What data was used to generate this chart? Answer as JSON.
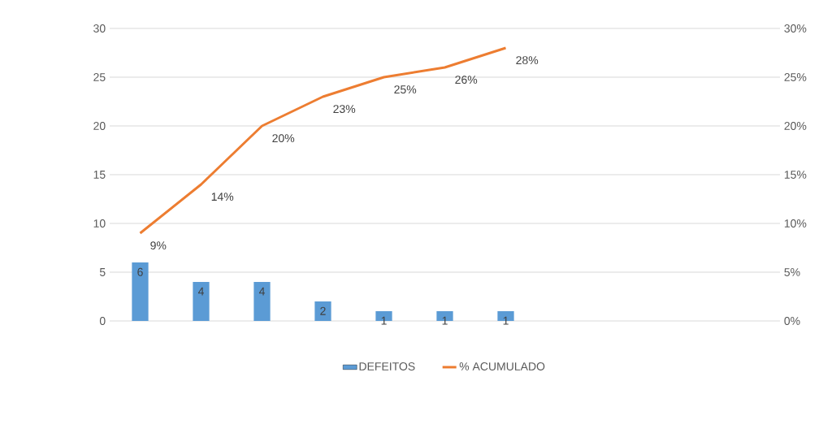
{
  "chart_data": {
    "type": "bar",
    "categories": [
      null,
      null,
      null,
      null,
      null,
      null,
      null,
      null,
      null,
      null,
      null
    ],
    "series": [
      {
        "name": "DEFEITOS",
        "color": "#5b9bd5",
        "values": [
          6,
          4,
          4,
          2,
          1,
          1,
          1,
          null,
          null,
          null,
          null
        ]
      },
      {
        "name": "% ACUMULADO",
        "type": "line",
        "axis": "y2",
        "color": "#ed7d31",
        "values": [
          9,
          14,
          20,
          23,
          25,
          26,
          28,
          null,
          null,
          null,
          null
        ],
        "value_labels": [
          "9%",
          "14%",
          "20%",
          "23%",
          "25%",
          "26%",
          "28%",
          null,
          null,
          null,
          null
        ]
      }
    ],
    "data_labels": true,
    "ylim": [
      0,
      30
    ],
    "yticks": [
      0,
      5,
      10,
      15,
      20,
      25,
      30
    ],
    "y2lim": [
      0,
      30
    ],
    "y2ticks": [
      {
        "value": 0,
        "label": "0%"
      },
      {
        "value": 5,
        "label": "5%"
      },
      {
        "value": 10,
        "label": "10%"
      },
      {
        "value": 15,
        "label": "15%"
      },
      {
        "value": 20,
        "label": "20%"
      },
      {
        "value": 25,
        "label": "25%"
      },
      {
        "value": 30,
        "label": "30%"
      }
    ],
    "grid": "y",
    "legend": "bottom",
    "marker": "none",
    "line_style": "solid"
  }
}
